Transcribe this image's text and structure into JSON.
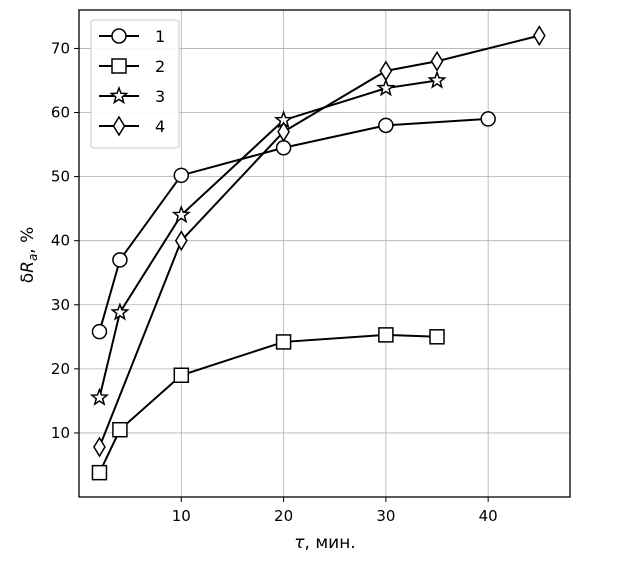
{
  "chart_data": {
    "type": "line",
    "xlabel_symbol": "τ",
    "xlabel_unit": ", мин.",
    "ylabel_delta": "δ",
    "ylabel_R": "R",
    "ylabel_sub": "a",
    "ylabel_unit": ", %",
    "xlim": [
      0,
      48
    ],
    "ylim": [
      0,
      76
    ],
    "xticks": [
      10,
      20,
      30,
      40
    ],
    "yticks": [
      10,
      20,
      30,
      40,
      50,
      60,
      70
    ],
    "grid": true,
    "legend_position": "top-left",
    "series": [
      {
        "name": "1",
        "marker": "circle",
        "points": [
          [
            2,
            25.8
          ],
          [
            4,
            37
          ],
          [
            10,
            50.2
          ],
          [
            20,
            54.5
          ],
          [
            30,
            58
          ],
          [
            40,
            59
          ]
        ]
      },
      {
        "name": "2",
        "marker": "square",
        "points": [
          [
            2,
            3.8
          ],
          [
            4,
            10.5
          ],
          [
            10,
            19
          ],
          [
            20,
            24.2
          ],
          [
            30,
            25.3
          ],
          [
            35,
            25
          ]
        ]
      },
      {
        "name": "3",
        "marker": "star",
        "points": [
          [
            2,
            15.5
          ],
          [
            4,
            28.8
          ],
          [
            10,
            44
          ],
          [
            20,
            58.8
          ],
          [
            30,
            63.8
          ],
          [
            35,
            65
          ]
        ]
      },
      {
        "name": "4",
        "marker": "diamond",
        "points": [
          [
            2,
            7.8
          ],
          [
            10,
            40
          ],
          [
            20,
            57
          ],
          [
            30,
            66.5
          ],
          [
            35,
            68
          ],
          [
            45,
            72
          ]
        ]
      }
    ]
  }
}
